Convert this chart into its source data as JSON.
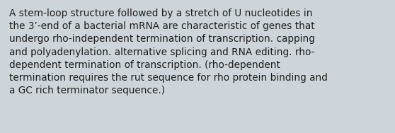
{
  "text": "A stem-loop structure followed by a stretch of U nucleotides in\nthe 3’-end of a bacterial mRNA are characteristic of genes that\nundergo rho-independent termination of transcription. capping\nand polyadenylation. alternative splicing and RNA editing. rho-\ndependent termination of transcription. (rho-dependent\ntermination requires the rut sequence for rho protein binding and\na GC rich terminator sequence.)",
  "background_color": "#cdd5da",
  "text_color": "#1e1e1e",
  "font_size": 9.8,
  "fig_width": 5.58,
  "fig_height": 1.88,
  "dpi": 100
}
